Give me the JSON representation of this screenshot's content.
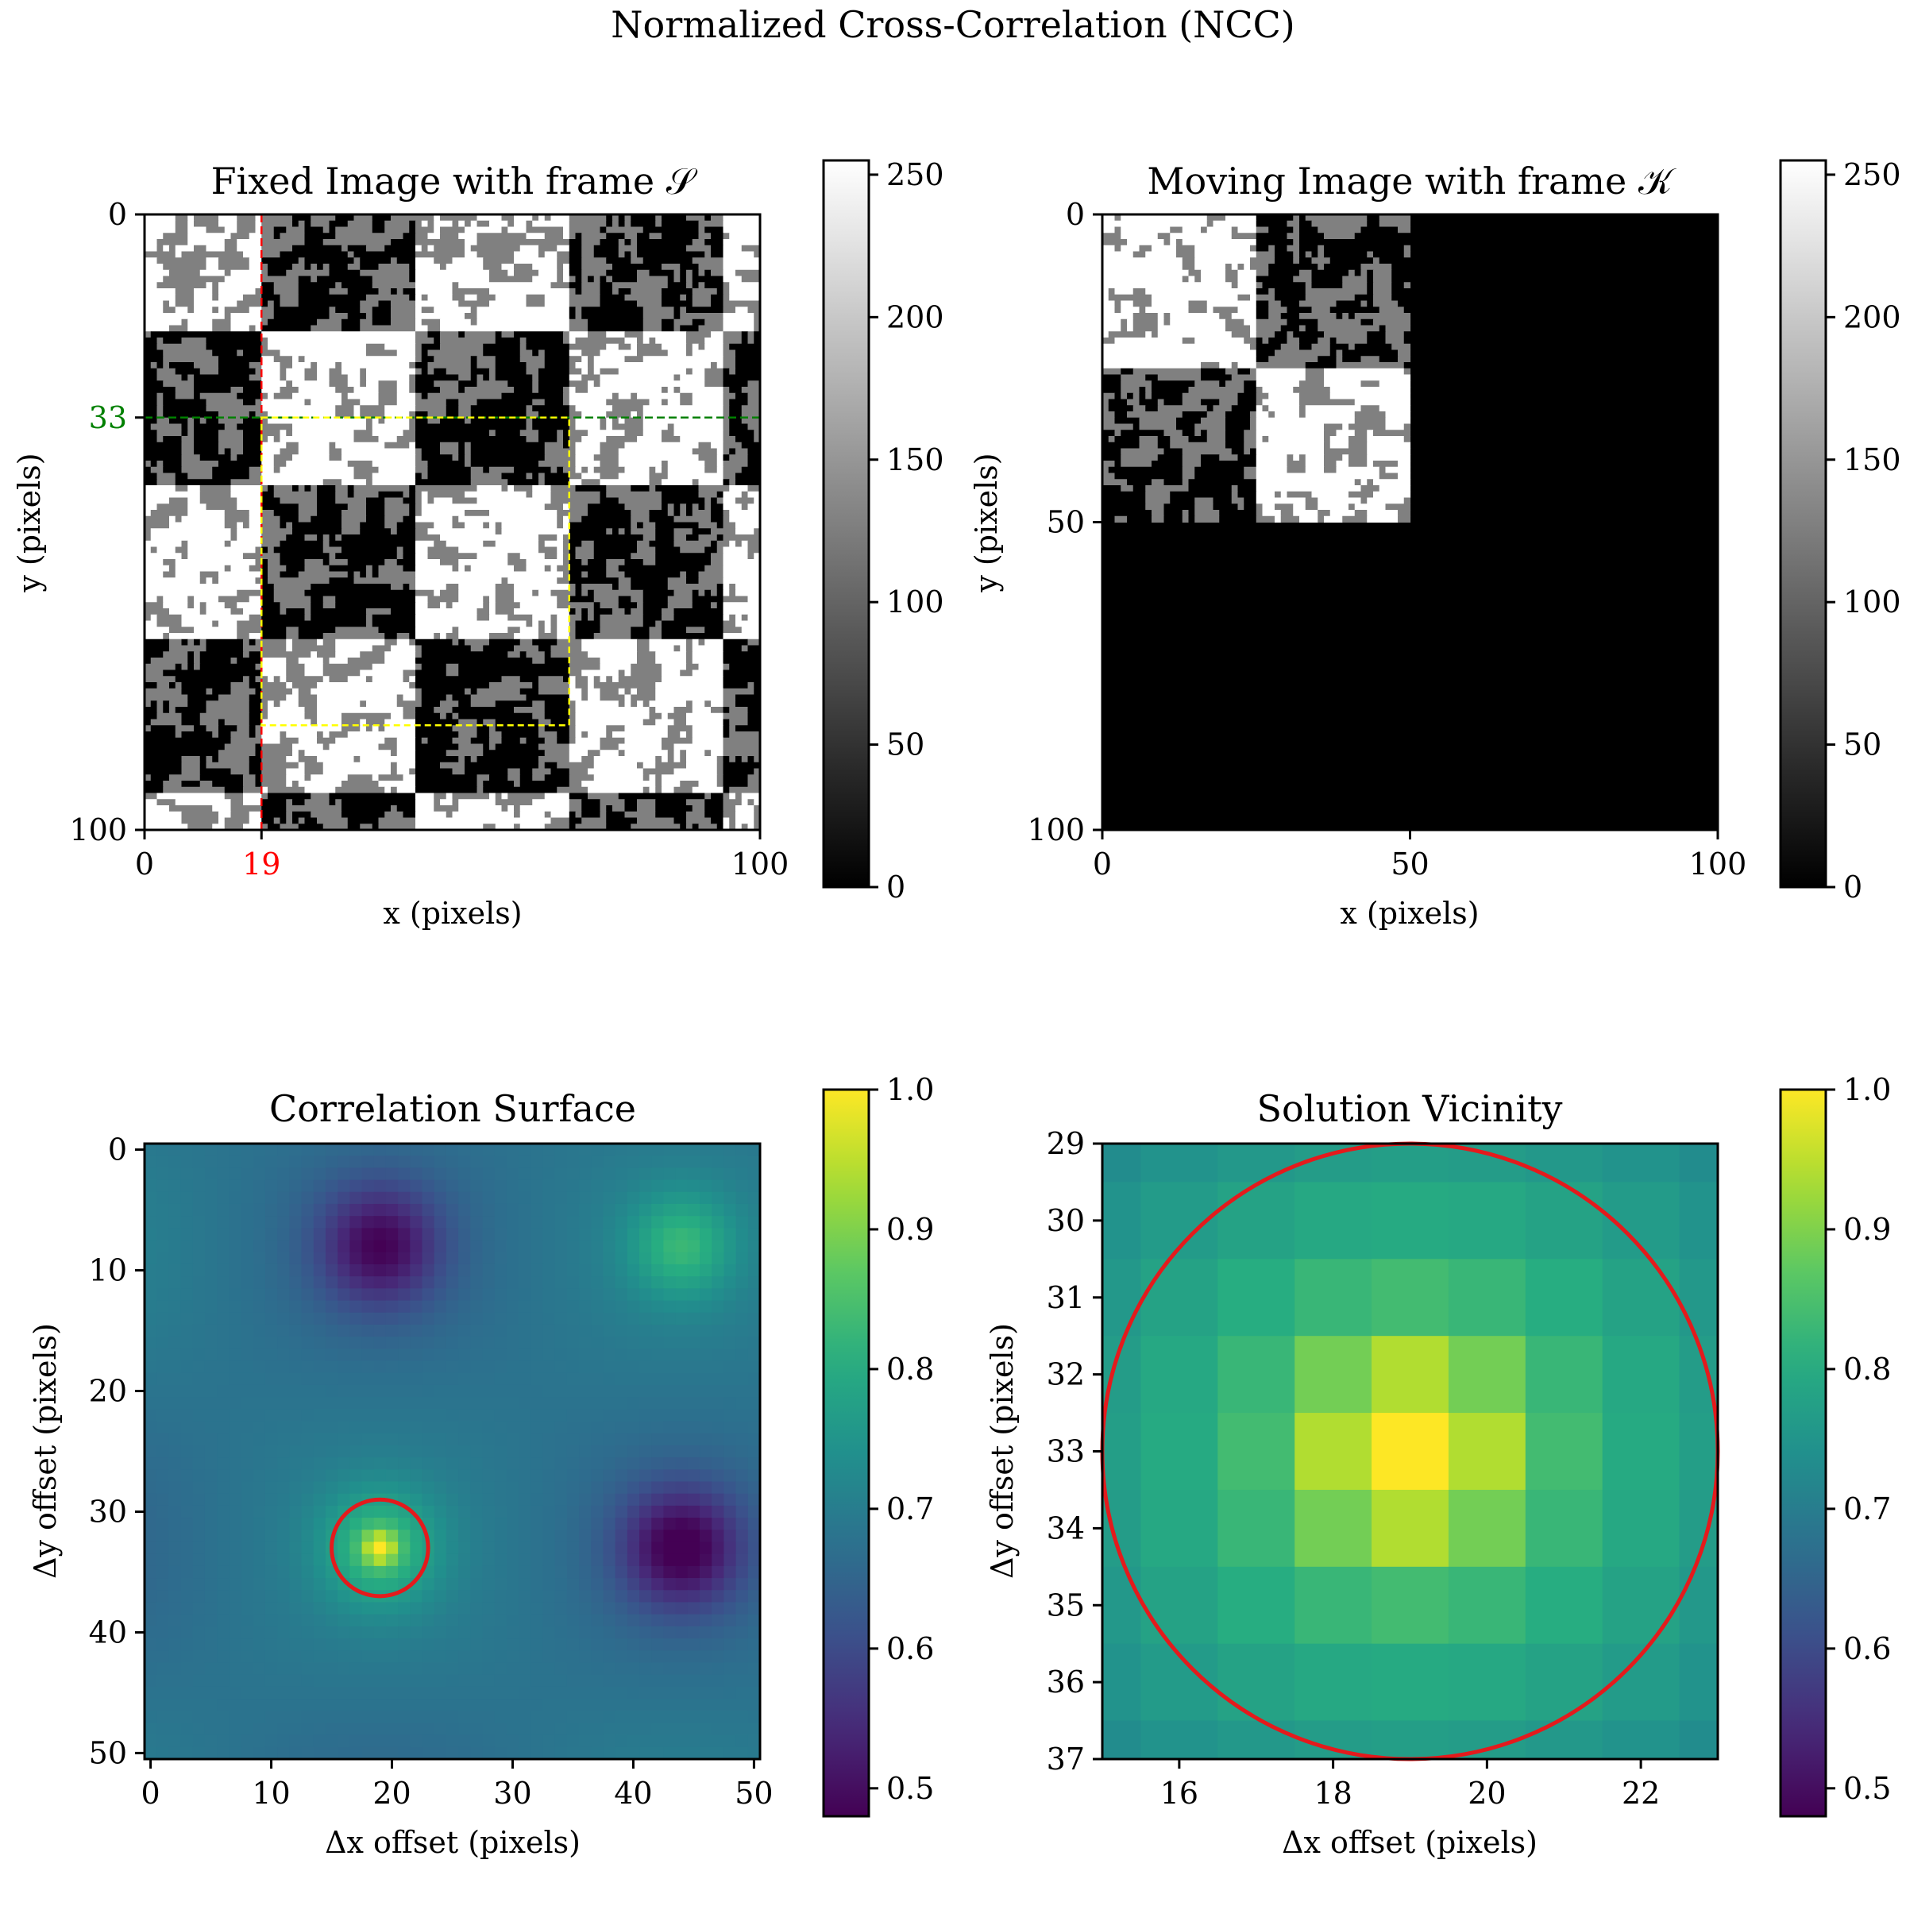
{
  "suptitle": "Normalized Cross-Correlation (NCC)",
  "chart_data": [
    {
      "id": "fixed",
      "type": "heatmap",
      "title": "Fixed Image with frame 𝒮",
      "xlabel": "x (pixels)",
      "ylabel": "y (pixels)",
      "xlim": [
        0,
        100
      ],
      "ylim": [
        100,
        0
      ],
      "xticks": [
        0,
        19,
        100
      ],
      "yticks": [
        0,
        33,
        100
      ],
      "highlight_ticks": {
        "x": {
          "value": 19,
          "color": "#ff0000"
        },
        "y": {
          "value": 33,
          "color": "#008000"
        }
      },
      "cmap": "gray",
      "colorbar": {
        "range": [
          0,
          255
        ],
        "ticks": [
          0,
          50,
          100,
          150,
          200,
          250
        ]
      },
      "checker_block_size": 25,
      "grid_offset": -6,
      "checker_first_bright": true,
      "levels": [
        0,
        128,
        255
      ],
      "annotations": {
        "vline": {
          "x": 19,
          "color": "#ff0000",
          "style": "dashed"
        },
        "hline": {
          "y": 33,
          "color": "#008000",
          "style": "dashed"
        },
        "rect": {
          "x0": 19,
          "y0": 33,
          "x1": 69,
          "y1": 83,
          "color": "#ffff00",
          "style": "dashed"
        }
      }
    },
    {
      "id": "moving",
      "type": "heatmap",
      "title": "Moving Image with frame 𝒦",
      "xlabel": "x (pixels)",
      "ylabel": "y (pixels)",
      "xlim": [
        0,
        100
      ],
      "ylim": [
        100,
        0
      ],
      "xticks": [
        0,
        50,
        100
      ],
      "yticks": [
        0,
        50,
        100
      ],
      "cmap": "gray",
      "colorbar": {
        "range": [
          0,
          255
        ],
        "ticks": [
          0,
          50,
          100,
          150,
          200,
          250
        ]
      },
      "pattern_extent": [
        50,
        50
      ],
      "checker_block_size": 25,
      "checker_first_bright": true,
      "background_value": 0
    },
    {
      "id": "corr",
      "type": "heatmap",
      "title": "Correlation Surface",
      "xlabel": "Δx offset (pixels)",
      "ylabel": "Δy offset (pixels)",
      "xlim": [
        -0.5,
        50.5
      ],
      "ylim": [
        50.5,
        -0.5
      ],
      "xticks": [
        0,
        10,
        20,
        30,
        40,
        50
      ],
      "yticks": [
        0,
        10,
        20,
        30,
        40,
        50
      ],
      "cmap": "viridis",
      "colorbar": {
        "range": [
          0.48,
          1.0
        ],
        "ticks": [
          0.5,
          0.6,
          0.7,
          0.8,
          0.9,
          1.0
        ]
      },
      "grid_size": [
        51,
        51
      ],
      "base_value": 0.68,
      "features": [
        {
          "x": 19,
          "y": 33,
          "amplitude": 0.14,
          "sigma": 3.2,
          "kind": "peak"
        },
        {
          "x": 19,
          "y": 33,
          "amplitude": 0.18,
          "sigma": 0.9,
          "kind": "peak"
        },
        {
          "x": 44,
          "y": 8,
          "amplitude": 0.12,
          "sigma": 3.0,
          "kind": "peak"
        },
        {
          "x": 19,
          "y": 8,
          "amplitude": -0.17,
          "sigma": 3.5,
          "kind": "trough"
        },
        {
          "x": 44,
          "y": 33,
          "amplitude": -0.19,
          "sigma": 3.5,
          "kind": "trough"
        }
      ],
      "maximum": {
        "x": 19,
        "y": 33,
        "value": 1.0
      },
      "circle": {
        "cx": 19,
        "cy": 33,
        "r": 4,
        "color": "#e41a1c"
      }
    },
    {
      "id": "zoom",
      "type": "heatmap",
      "title": "Solution Vicinity",
      "xlabel": "Δx offset (pixels)",
      "ylabel": "Δy offset (pixels)",
      "xlim": [
        15,
        23
      ],
      "ylim": [
        37,
        29
      ],
      "xticks": [
        16,
        18,
        20,
        22
      ],
      "yticks": [
        29,
        30,
        31,
        32,
        33,
        34,
        35,
        36,
        37
      ],
      "cmap": "viridis",
      "colorbar": {
        "range": [
          0.48,
          1.0
        ],
        "ticks": [
          0.5,
          0.6,
          0.7,
          0.8,
          0.9,
          1.0
        ]
      },
      "circle": {
        "cx": 19,
        "cy": 33,
        "r": 4,
        "color": "#e41a1c"
      }
    }
  ]
}
